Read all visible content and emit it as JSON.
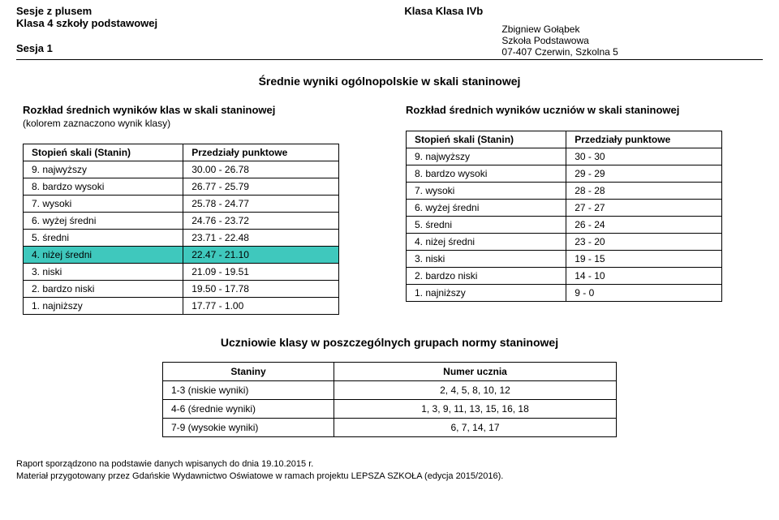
{
  "header": {
    "left": {
      "line1": "Sesje z plusem",
      "line2": "Klasa 4 szkoły podstawowej",
      "line3": "Sesja 1"
    },
    "right": {
      "class_title": "Klasa Klasa IVb",
      "teacher": "Zbigniew Gołąbek",
      "school": "Szkoła Podstawowa",
      "address": "07-407 Czerwin, Szkolna 5"
    }
  },
  "main_title": "Średnie wyniki ogólnopolskie w skali staninowej",
  "left_table": {
    "title": "Rozkład średnich wyników klas w skali staninowej",
    "subtitle": "(kolorem zaznaczono wynik klasy)",
    "col1": "Stopień skali (Stanin)",
    "col2": "Przedziały punktowe",
    "highlight_color": "#3fc8bd",
    "highlight_row_index": 5,
    "rows": [
      {
        "label": "9. najwyższy",
        "range": "30.00 - 26.78"
      },
      {
        "label": "8. bardzo wysoki",
        "range": "26.77 - 25.79"
      },
      {
        "label": "7. wysoki",
        "range": "25.78 - 24.77"
      },
      {
        "label": "6. wyżej średni",
        "range": "24.76 - 23.72"
      },
      {
        "label": "5. średni",
        "range": "23.71 - 22.48"
      },
      {
        "label": "4. niżej średni",
        "range": "22.47 - 21.10"
      },
      {
        "label": "3. niski",
        "range": "21.09 - 19.51"
      },
      {
        "label": "2. bardzo niski",
        "range": "19.50 - 17.78"
      },
      {
        "label": "1. najniższy",
        "range": "17.77 - 1.00"
      }
    ]
  },
  "right_table": {
    "title": "Rozkład średnich wyników uczniów w skali staninowej",
    "col1": "Stopień skali (Stanin)",
    "col2": "Przedziały punktowe",
    "rows": [
      {
        "label": "9. najwyższy",
        "range": "30 - 30"
      },
      {
        "label": "8. bardzo wysoki",
        "range": "29 - 29"
      },
      {
        "label": "7. wysoki",
        "range": "28 - 28"
      },
      {
        "label": "6. wyżej średni",
        "range": "27 - 27"
      },
      {
        "label": "5. średni",
        "range": "26 - 24"
      },
      {
        "label": "4. niżej średni",
        "range": "23 - 20"
      },
      {
        "label": "3. niski",
        "range": "19 - 15"
      },
      {
        "label": "2. bardzo niski",
        "range": "14 - 10"
      },
      {
        "label": "1. najniższy",
        "range": "9 - 0"
      }
    ]
  },
  "students_table": {
    "title": "Uczniowie klasy w poszczególnych grupach normy staninowej",
    "col1": "Staniny",
    "col2": "Numer ucznia",
    "rows": [
      {
        "group": "1-3 (niskie wyniki)",
        "ids": "2, 4, 5, 8, 10, 12"
      },
      {
        "group": "4-6 (średnie wyniki)",
        "ids": "1, 3, 9, 11, 13, 15, 16, 18"
      },
      {
        "group": "7-9 (wysokie wyniki)",
        "ids": "6, 7, 14, 17"
      }
    ]
  },
  "footer": {
    "line1": "Raport sporządzono na podstawie danych wpisanych do dnia 19.10.2015 r.",
    "line2": "Materiał przygotowany przez Gdańskie Wydawnictwo Oświatowe w ramach projektu LEPSZA SZKOŁA (edycja 2015/2016)."
  }
}
